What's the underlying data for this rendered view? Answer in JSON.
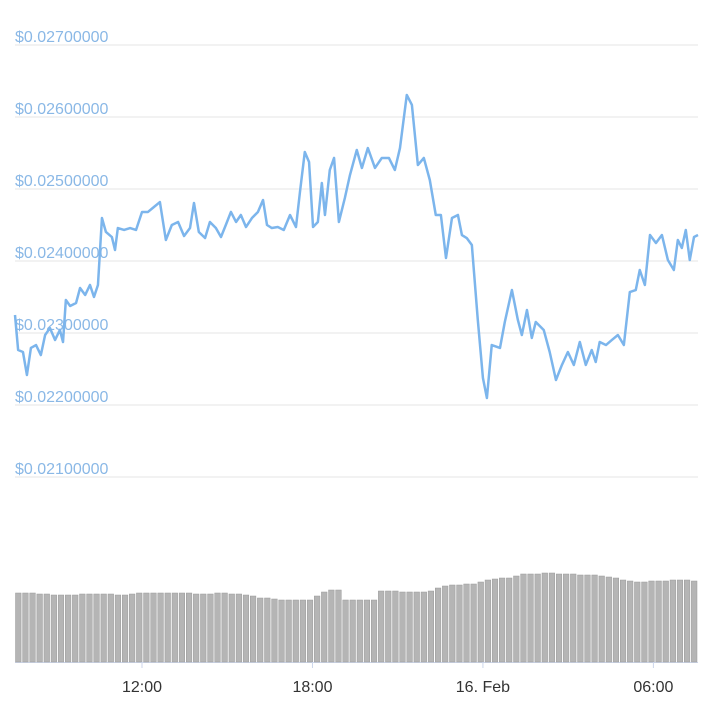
{
  "chart_data": {
    "type": "line",
    "color": "#7cb5ec",
    "grid": true,
    "xlim": [
      7.53,
      31.57
    ],
    "xticks": [
      {
        "value": 12,
        "label": "12:00"
      },
      {
        "value": 18,
        "label": "18:00"
      },
      {
        "value": 24,
        "label": "16. Feb"
      },
      {
        "value": 30,
        "label": "06:00"
      }
    ],
    "ylim": [
      0.021,
      0.027
    ],
    "yticks": [
      {
        "value": 0.021,
        "label": "$0.02100000"
      },
      {
        "value": 0.022,
        "label": "$0.02200000"
      },
      {
        "value": 0.023,
        "label": "$0.02300000"
      },
      {
        "value": 0.024,
        "label": "$0.02400000"
      },
      {
        "value": 0.025,
        "label": "$0.02500000"
      },
      {
        "value": 0.026,
        "label": "$0.02600000"
      },
      {
        "value": 0.027,
        "label": "$0.02700000"
      }
    ],
    "x": [
      7.53,
      7.64,
      7.81,
      7.95,
      8.09,
      8.27,
      8.44,
      8.59,
      8.76,
      8.94,
      9.11,
      9.22,
      9.32,
      9.47,
      9.68,
      9.82,
      10.0,
      10.17,
      10.31,
      10.45,
      10.59,
      10.73,
      10.94,
      11.05,
      11.15,
      11.37,
      11.58,
      11.79,
      12.0,
      12.21,
      12.42,
      12.63,
      12.84,
      13.05,
      13.27,
      13.48,
      13.69,
      13.83,
      14.0,
      14.22,
      14.39,
      14.6,
      14.78,
      14.95,
      15.13,
      15.31,
      15.48,
      15.66,
      15.87,
      16.08,
      16.26,
      16.4,
      16.57,
      16.78,
      16.99,
      17.21,
      17.42,
      17.56,
      17.73,
      17.88,
      18.02,
      18.19,
      18.33,
      18.44,
      18.61,
      18.76,
      18.93,
      19.14,
      19.32,
      19.56,
      19.74,
      19.95,
      20.2,
      20.44,
      20.69,
      20.9,
      21.08,
      21.32,
      21.5,
      21.71,
      21.92,
      22.13,
      22.34,
      22.52,
      22.7,
      22.91,
      23.12,
      23.26,
      23.43,
      23.61,
      23.82,
      24.0,
      24.14,
      24.31,
      24.6,
      24.77,
      25.02,
      25.23,
      25.37,
      25.55,
      25.72,
      25.86,
      26.14,
      26.35,
      26.57,
      26.78,
      26.99,
      27.2,
      27.41,
      27.62,
      27.83,
      27.97,
      28.11,
      28.33,
      28.54,
      28.75,
      28.96,
      29.17,
      29.38,
      29.52,
      29.7,
      29.88,
      30.09,
      30.3,
      30.51,
      30.72,
      30.86,
      31.0,
      31.14,
      31.28,
      31.43,
      31.57
    ],
    "values": [
      0.02325,
      0.022764,
      0.022736,
      0.022417,
      0.022792,
      0.022833,
      0.022694,
      0.022972,
      0.023069,
      0.022903,
      0.023042,
      0.022875,
      0.023458,
      0.023375,
      0.023417,
      0.023625,
      0.023528,
      0.023667,
      0.0235,
      0.023667,
      0.024597,
      0.024403,
      0.024333,
      0.024153,
      0.024458,
      0.024431,
      0.024458,
      0.024431,
      0.024681,
      0.024681,
      0.02475,
      0.024819,
      0.024292,
      0.0245,
      0.024542,
      0.024347,
      0.024458,
      0.024806,
      0.024403,
      0.024319,
      0.024542,
      0.024458,
      0.024333,
      0.0245,
      0.024681,
      0.024542,
      0.024639,
      0.024472,
      0.024597,
      0.024681,
      0.024847,
      0.0245,
      0.024458,
      0.024472,
      0.024431,
      0.024639,
      0.024472,
      0.024958,
      0.025514,
      0.025375,
      0.024472,
      0.024542,
      0.025083,
      0.024639,
      0.025264,
      0.025431,
      0.024542,
      0.024875,
      0.025194,
      0.025542,
      0.025292,
      0.025569,
      0.025292,
      0.025431,
      0.025431,
      0.025264,
      0.025569,
      0.026306,
      0.026167,
      0.025333,
      0.025431,
      0.025125,
      0.024639,
      0.024639,
      0.024042,
      0.024597,
      0.024639,
      0.024361,
      0.024319,
      0.024222,
      0.023181,
      0.022375,
      0.022097,
      0.022833,
      0.022792,
      0.023153,
      0.023597,
      0.023181,
      0.022972,
      0.023319,
      0.022931,
      0.023153,
      0.023042,
      0.022736,
      0.022347,
      0.022556,
      0.022736,
      0.022556,
      0.022875,
      0.022556,
      0.022764,
      0.022597,
      0.022875,
      0.022833,
      0.022903,
      0.022972,
      0.022833,
      0.023569,
      0.023597,
      0.023875,
      0.023667,
      0.024361,
      0.02425,
      0.024361,
      0.024014,
      0.023875,
      0.024292,
      0.024181,
      0.024431,
      0.024014,
      0.024333,
      0.024361
    ],
    "volume": {
      "type": "bar",
      "color": "#b5b5b5",
      "values": [
        69,
        69,
        69,
        68,
        68,
        67,
        67,
        67,
        67,
        68,
        68,
        68,
        68,
        68,
        67,
        67,
        68,
        69,
        69,
        69,
        69,
        69,
        69,
        69,
        69,
        68,
        68,
        68,
        69,
        69,
        68,
        68,
        67,
        66,
        64,
        64,
        63,
        62,
        62,
        62,
        62,
        62,
        66,
        70,
        72,
        72,
        62,
        62,
        62,
        62,
        62,
        71,
        71,
        71,
        70,
        70,
        70,
        70,
        71,
        74,
        76,
        77,
        77,
        78,
        78,
        80,
        82,
        83,
        84,
        84,
        86,
        88,
        88,
        88,
        89,
        89,
        88,
        88,
        88,
        87,
        87,
        87,
        86,
        85,
        84,
        82,
        81,
        80,
        80,
        81,
        81,
        81,
        82,
        82,
        82,
        81
      ]
    }
  }
}
